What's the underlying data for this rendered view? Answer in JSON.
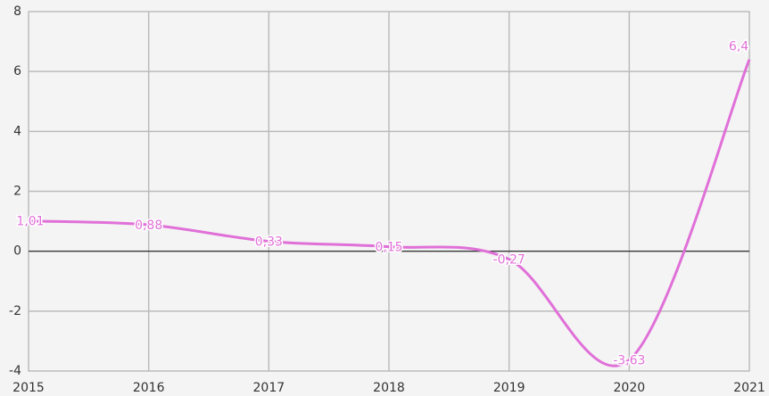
{
  "chart_data": {
    "type": "line",
    "x": [
      2015,
      2016,
      2017,
      2018,
      2019,
      2020,
      2021
    ],
    "series": [
      {
        "color": "#e070d8",
        "values": [
          1.01,
          0.88,
          0.33,
          0.15,
          -0.27,
          -3.63,
          6.4
        ],
        "value_labels": [
          "1,01",
          "0,88",
          "0,33",
          "0,15",
          "-0,27",
          "-3,63",
          "6,4"
        ]
      }
    ],
    "xlim": [
      2015,
      2021
    ],
    "xticks": [
      2015,
      2016,
      2017,
      2018,
      2019,
      2020,
      2021
    ],
    "ylim": [
      -4,
      8
    ],
    "yticks": [
      -4,
      -2,
      0,
      2,
      4,
      6,
      8
    ],
    "grid": true,
    "smooth": true
  }
}
